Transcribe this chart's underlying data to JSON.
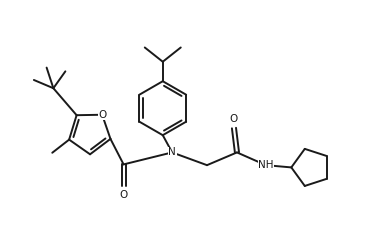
{
  "bg_color": "#ffffff",
  "line_color": "#1a1a1a",
  "line_width": 1.4,
  "figsize": [
    3.78,
    2.52
  ],
  "dpi": 100,
  "xlim": [
    0,
    10
  ],
  "ylim": [
    0,
    6.65
  ]
}
